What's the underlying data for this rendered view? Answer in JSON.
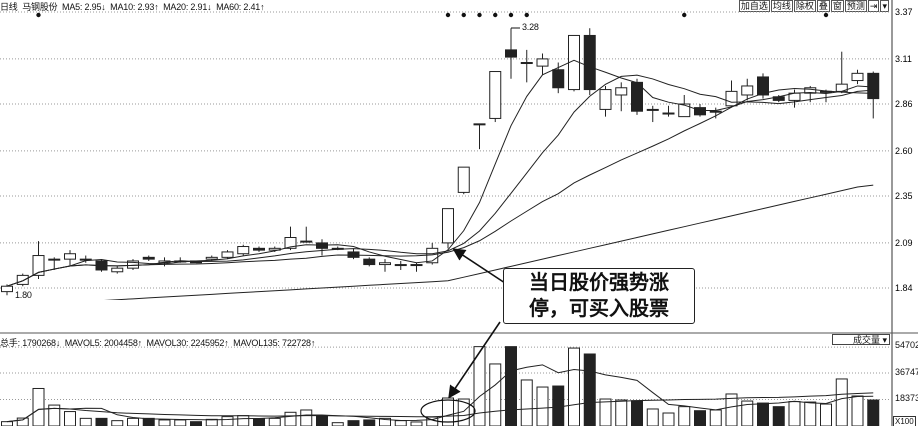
{
  "header": {
    "period": "日线",
    "stock": "马钢股份",
    "ma5": "MA5: 2.95↓",
    "ma10": "MA10: 2.93↑",
    "ma20": "MA20: 2.91↓",
    "ma60": "MA60: 2.41↑"
  },
  "toolbar": [
    "加自选",
    "均线",
    "除权",
    "叠",
    "窗",
    "预测",
    "⇥",
    "▾"
  ],
  "volume_header": {
    "total": "总手: 1790268↓",
    "mavol5": "MAVOL5: 2004458↑",
    "mavol30": "MAVOL30: 2245952↑",
    "mavol135": "MAVOL135: 722728↑"
  },
  "volume_selector": "成交量 ▾",
  "volume_unit": "X100",
  "annotation": {
    "line1": "当日股价强势涨",
    "line2": "停，可买入股票"
  },
  "chart_data": {
    "type": "candlestick",
    "price_axis": {
      "ticks": [
        "3.37",
        "3.11",
        "2.86",
        "2.60",
        "2.35",
        "2.09",
        "1.84"
      ],
      "range": [
        1.7,
        3.4
      ]
    },
    "volume_axis": {
      "ticks": [
        "54702",
        "36747",
        "18373"
      ],
      "unit": "X100"
    },
    "high_label": "3.28",
    "low_label": "1.80",
    "colors": {
      "up": "#ffffff",
      "down": "#222222",
      "line": "#222222",
      "grid": "#999999"
    },
    "signal_markers_at": [
      3,
      29,
      30,
      31,
      32,
      33,
      34,
      44,
      53
    ],
    "candles_ohlc": [
      [
        1.82,
        1.86,
        1.8,
        1.85
      ],
      [
        1.86,
        1.92,
        1.85,
        1.91
      ],
      [
        1.91,
        2.1,
        1.89,
        2.02
      ],
      [
        2.0,
        2.01,
        1.94,
        2.0
      ],
      [
        2.0,
        2.05,
        1.96,
        2.03
      ],
      [
        2.0,
        2.02,
        1.98,
        2.0
      ],
      [
        1.99,
        2.0,
        1.93,
        1.94
      ],
      [
        1.93,
        1.96,
        1.92,
        1.95
      ],
      [
        1.95,
        2.0,
        1.94,
        1.99
      ],
      [
        2.01,
        2.02,
        1.99,
        2.0
      ],
      [
        1.98,
        2.01,
        1.96,
        1.99
      ],
      [
        1.99,
        2.01,
        1.98,
        1.99
      ],
      [
        1.99,
        1.99,
        1.98,
        1.98
      ],
      [
        2.0,
        2.02,
        1.99,
        2.01
      ],
      [
        2.01,
        2.05,
        2.0,
        2.04
      ],
      [
        2.03,
        2.08,
        2.02,
        2.07
      ],
      [
        2.06,
        2.07,
        2.04,
        2.05
      ],
      [
        2.05,
        2.07,
        2.04,
        2.06
      ],
      [
        2.06,
        2.18,
        2.05,
        2.12
      ],
      [
        2.1,
        2.18,
        2.1,
        2.1
      ],
      [
        2.09,
        2.11,
        2.02,
        2.06
      ],
      [
        2.06,
        2.07,
        2.05,
        2.06
      ],
      [
        2.04,
        2.06,
        2.0,
        2.01
      ],
      [
        2.0,
        2.01,
        1.96,
        1.97
      ],
      [
        1.97,
        2.0,
        1.93,
        1.98
      ],
      [
        1.97,
        1.99,
        1.94,
        1.97
      ],
      [
        1.97,
        1.98,
        1.93,
        1.97
      ],
      [
        1.98,
        2.09,
        1.97,
        2.06
      ],
      [
        2.09,
        2.28,
        2.06,
        2.28
      ],
      [
        2.37,
        2.51,
        2.36,
        2.51
      ],
      [
        2.75,
        2.75,
        2.61,
        2.75
      ],
      [
        2.78,
        3.04,
        2.76,
        3.04
      ],
      [
        3.16,
        3.28,
        3.0,
        3.12
      ],
      [
        3.09,
        3.16,
        2.98,
        3.09
      ],
      [
        3.07,
        3.14,
        3.02,
        3.11
      ],
      [
        3.05,
        3.09,
        2.92,
        2.95
      ],
      [
        2.94,
        3.24,
        2.93,
        3.24
      ],
      [
        3.24,
        3.28,
        2.91,
        2.94
      ],
      [
        2.83,
        2.96,
        2.79,
        2.94
      ],
      [
        2.91,
        2.98,
        2.82,
        2.95
      ],
      [
        2.98,
        3.0,
        2.8,
        2.82
      ],
      [
        2.83,
        2.85,
        2.76,
        2.83
      ],
      [
        2.81,
        2.85,
        2.79,
        2.81
      ],
      [
        2.79,
        2.91,
        2.79,
        2.86
      ],
      [
        2.84,
        2.86,
        2.79,
        2.8
      ],
      [
        2.82,
        2.84,
        2.78,
        2.82
      ],
      [
        2.85,
        2.99,
        2.84,
        2.93
      ],
      [
        2.91,
        3.0,
        2.88,
        2.96
      ],
      [
        3.01,
        3.03,
        2.89,
        2.91
      ],
      [
        2.9,
        2.91,
        2.87,
        2.88
      ],
      [
        2.88,
        2.94,
        2.84,
        2.92
      ],
      [
        2.92,
        2.96,
        2.87,
        2.95
      ],
      [
        2.93,
        2.94,
        2.87,
        2.93
      ],
      [
        2.93,
        3.15,
        2.92,
        2.97
      ],
      [
        2.99,
        3.05,
        2.97,
        3.03
      ],
      [
        3.03,
        3.04,
        2.78,
        2.89
      ]
    ],
    "ma60": [
      1.74,
      1.745,
      1.75,
      1.755,
      1.76,
      1.765,
      1.77,
      1.775,
      1.78,
      1.785,
      1.79,
      1.795,
      1.8,
      1.805,
      1.81,
      1.815,
      1.82,
      1.825,
      1.83,
      1.835,
      1.84,
      1.845,
      1.85,
      1.855,
      1.86,
      1.865,
      1.87,
      1.875,
      1.88,
      1.9,
      1.92,
      1.94,
      1.96,
      1.98,
      2.0,
      2.02,
      2.04,
      2.06,
      2.08,
      2.1,
      2.12,
      2.14,
      2.16,
      2.18,
      2.2,
      2.22,
      2.24,
      2.26,
      2.28,
      2.3,
      2.32,
      2.34,
      2.36,
      2.38,
      2.4,
      2.41
    ],
    "volume": [
      3000,
      5500,
      26000,
      14500,
      10000,
      5300,
      5300,
      3700,
      5300,
      5300,
      4200,
      4200,
      3000,
      4600,
      6500,
      7200,
      4900,
      5300,
      9500,
      11100,
      7200,
      2300,
      3700,
      4200,
      5300,
      3700,
      2800,
      6200,
      19400,
      18700,
      55000,
      43000,
      55000,
      31900,
      27000,
      27700,
      54000,
      49900,
      18700,
      18000,
      17500,
      11800,
      9000,
      13400,
      10600,
      11100,
      22200,
      17300,
      15900,
      13400,
      16900,
      16600,
      15200,
      32600,
      20800,
      18000
    ]
  }
}
